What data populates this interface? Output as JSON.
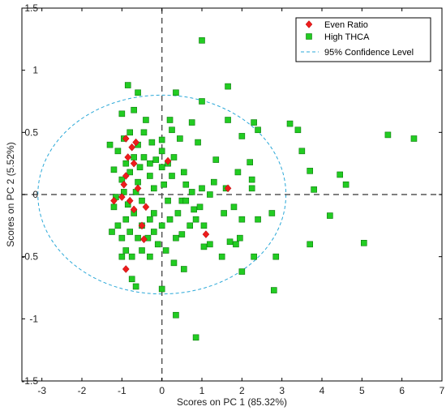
{
  "chart_data": {
    "type": "scatter",
    "title": "",
    "xlabel": "Scores on PC 1 (85.32%)",
    "ylabel": "Scores on PC 2 (5.52%)",
    "xlim": [
      -3.5,
      7
    ],
    "ylim": [
      -1.5,
      1.5
    ],
    "xticks": [
      -3,
      -2,
      -1,
      0,
      1,
      2,
      3,
      4,
      5,
      6,
      7
    ],
    "yticks": [
      -1.5,
      -1,
      -0.5,
      0,
      0.5,
      1,
      1.5
    ],
    "xtick_labels": [
      "-3",
      "-2",
      "-1",
      "0",
      "1",
      "2",
      "3",
      "4",
      "5",
      "6",
      "7"
    ],
    "ytick_labels": [
      "-1.5",
      "-1",
      "-0.5",
      "0",
      "0.5",
      "1",
      "1.5"
    ],
    "grid": false,
    "reference_lines": {
      "x": 0,
      "y": 0,
      "style": "dashed",
      "color": "#555555"
    },
    "legend": {
      "placement": "top-right",
      "entries": [
        {
          "label": "Even Ratio",
          "marker": "diamond",
          "color": "#ee1c1c"
        },
        {
          "label": "High THCA",
          "marker": "square",
          "color": "#22cc22"
        },
        {
          "label": "95% Confidence Level",
          "marker": "dashed-line",
          "color": "#2aa8d8"
        }
      ]
    },
    "confidence_ellipse": {
      "center": [
        0,
        0
      ],
      "radius_x": 3.1,
      "radius_y": 0.8
    },
    "series": [
      {
        "name": "High THCA",
        "marker": "square",
        "color": "#22cc22",
        "points": [
          [
            1.0,
            1.24
          ],
          [
            1.65,
            0.87
          ],
          [
            1.0,
            0.75
          ],
          [
            -0.85,
            0.88
          ],
          [
            -0.6,
            0.82
          ],
          [
            0.35,
            0.82
          ],
          [
            -1.0,
            0.65
          ],
          [
            -0.7,
            0.68
          ],
          [
            -0.4,
            0.6
          ],
          [
            0.2,
            0.6
          ],
          [
            0.75,
            0.58
          ],
          [
            1.65,
            0.6
          ],
          [
            2.3,
            0.58
          ],
          [
            3.2,
            0.57
          ],
          [
            3.4,
            0.52
          ],
          [
            5.65,
            0.48
          ],
          [
            6.3,
            0.45
          ],
          [
            2.0,
            0.47
          ],
          [
            2.4,
            0.52
          ],
          [
            0.0,
            0.44
          ],
          [
            0.45,
            0.45
          ],
          [
            0.9,
            0.42
          ],
          [
            3.5,
            0.35
          ],
          [
            0.0,
            0.35
          ],
          [
            0.3,
            0.3
          ],
          [
            2.2,
            0.26
          ],
          [
            1.9,
            0.18
          ],
          [
            3.7,
            0.19
          ],
          [
            4.45,
            0.16
          ],
          [
            2.25,
            0.12
          ],
          [
            1.6,
            0.05
          ],
          [
            2.25,
            0.05
          ],
          [
            3.8,
            0.04
          ],
          [
            4.6,
            0.08
          ],
          [
            -1.3,
            0.4
          ],
          [
            -0.9,
            0.25
          ],
          [
            -1.1,
            0.35
          ],
          [
            -1.2,
            0.2
          ],
          [
            -1.0,
            0.12
          ],
          [
            -0.8,
            0.18
          ],
          [
            -0.6,
            0.1
          ],
          [
            -0.45,
            0.3
          ],
          [
            -0.3,
            0.15
          ],
          [
            -0.2,
            0.05
          ],
          [
            -0.5,
            -0.05
          ],
          [
            -0.7,
            -0.15
          ],
          [
            -0.3,
            -0.2
          ],
          [
            -0.6,
            0.4
          ],
          [
            -0.45,
            0.5
          ],
          [
            -0.8,
            0.5
          ],
          [
            -0.95,
            0.02
          ],
          [
            -0.85,
            -0.08
          ],
          [
            -0.65,
            0.02
          ],
          [
            0.25,
            0.15
          ],
          [
            0.6,
            0.08
          ],
          [
            0.75,
            0.02
          ],
          [
            1.0,
            0.05
          ],
          [
            1.2,
            0.0
          ],
          [
            1.3,
            0.1
          ],
          [
            0.95,
            -0.1
          ],
          [
            0.5,
            -0.05
          ],
          [
            0.4,
            -0.15
          ],
          [
            0.7,
            -0.25
          ],
          [
            0.6,
            -0.05
          ],
          [
            0.15,
            -0.05
          ],
          [
            -0.9,
            -0.2
          ],
          [
            -1.2,
            -0.1
          ],
          [
            -1.1,
            -0.25
          ],
          [
            -1.0,
            -0.35
          ],
          [
            -0.8,
            -0.3
          ],
          [
            -0.5,
            -0.25
          ],
          [
            -0.35,
            -0.35
          ],
          [
            -0.2,
            -0.3
          ],
          [
            0.0,
            -0.25
          ],
          [
            0.2,
            -0.2
          ],
          [
            -0.1,
            -0.4
          ],
          [
            -0.3,
            -0.5
          ],
          [
            -0.5,
            -0.45
          ],
          [
            -0.75,
            -0.5
          ],
          [
            -0.9,
            -0.45
          ],
          [
            -1.0,
            -0.5
          ],
          [
            -0.75,
            -0.68
          ],
          [
            -0.65,
            -0.74
          ],
          [
            0.0,
            -0.76
          ],
          [
            0.35,
            -0.35
          ],
          [
            0.5,
            -0.32
          ],
          [
            0.55,
            -0.6
          ],
          [
            0.85,
            -0.2
          ],
          [
            1.05,
            -0.25
          ],
          [
            1.55,
            -0.15
          ],
          [
            1.8,
            -0.1
          ],
          [
            1.95,
            -0.35
          ],
          [
            2.4,
            -0.2
          ],
          [
            1.2,
            -0.4
          ],
          [
            1.5,
            -0.5
          ],
          [
            1.7,
            -0.38
          ],
          [
            1.85,
            -0.4
          ],
          [
            2.0,
            -0.62
          ],
          [
            2.3,
            -0.5
          ],
          [
            2.75,
            -0.15
          ],
          [
            2.85,
            -0.5
          ],
          [
            2.8,
            -0.77
          ],
          [
            3.7,
            -0.4
          ],
          [
            4.2,
            -0.17
          ],
          [
            5.05,
            -0.39
          ],
          [
            0.35,
            -0.97
          ],
          [
            0.85,
            -1.15
          ],
          [
            0.25,
            0.52
          ],
          [
            0.0,
            0.22
          ],
          [
            0.55,
            0.18
          ],
          [
            -0.15,
            0.28
          ],
          [
            -0.55,
            0.22
          ],
          [
            -0.95,
            0.45
          ],
          [
            -0.25,
            0.42
          ],
          [
            0.05,
            0.08
          ],
          [
            -1.15,
            -0.02
          ],
          [
            0.8,
            -0.12
          ],
          [
            1.05,
            -0.42
          ],
          [
            0.3,
            -0.55
          ],
          [
            0.1,
            -0.45
          ],
          [
            -0.2,
            -0.15
          ],
          [
            -0.6,
            -0.35
          ],
          [
            -1.25,
            -0.3
          ],
          [
            -0.7,
            0.3
          ],
          [
            -0.3,
            0.25
          ],
          [
            2.0,
            -0.2
          ],
          [
            1.35,
            0.28
          ],
          [
            0.15,
            0.25
          ]
        ]
      },
      {
        "name": "Even Ratio",
        "marker": "diamond",
        "color": "#ee1c1c",
        "points": [
          [
            -0.9,
            0.45
          ],
          [
            -0.75,
            0.38
          ],
          [
            -0.65,
            0.42
          ],
          [
            -0.85,
            0.3
          ],
          [
            -0.7,
            0.25
          ],
          [
            0.15,
            0.27
          ],
          [
            -0.9,
            0.15
          ],
          [
            -0.6,
            0.05
          ],
          [
            -1.2,
            -0.05
          ],
          [
            -1.0,
            -0.02
          ],
          [
            -0.8,
            -0.05
          ],
          [
            -0.4,
            -0.1
          ],
          [
            -0.7,
            -0.12
          ],
          [
            -0.5,
            -0.25
          ],
          [
            -0.45,
            -0.36
          ],
          [
            1.1,
            -0.32
          ],
          [
            -0.9,
            -0.6
          ],
          [
            1.65,
            0.05
          ],
          [
            -0.95,
            0.08
          ]
        ]
      }
    ]
  }
}
